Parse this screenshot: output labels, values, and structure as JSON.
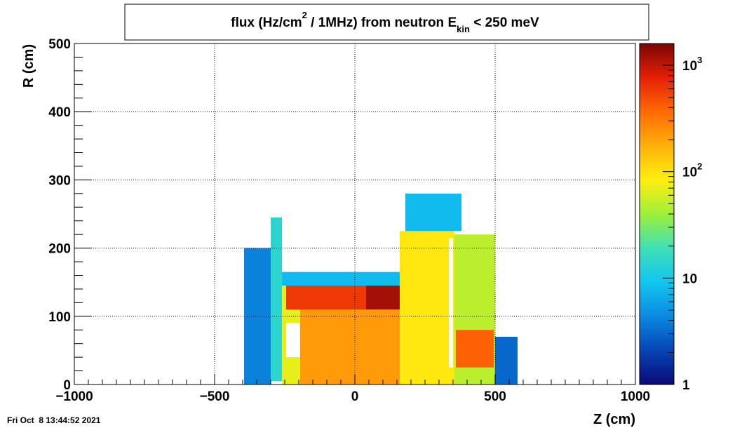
{
  "chart_data": {
    "type": "heatmap",
    "title": {
      "pre": "flux (Hz/cm",
      "sup": "2",
      "mid": " / 1MHz) from   neutron  E",
      "sub": "kin",
      "post": " < 250 meV"
    },
    "xlabel": "Z (cm)",
    "ylabel": "R (cm)",
    "xlim": [
      -1000,
      1000
    ],
    "ylim": [
      0,
      500
    ],
    "x_ticks": [
      {
        "value": -1000,
        "label": "−1000"
      },
      {
        "value": -500,
        "label": "−500"
      },
      {
        "value": 0,
        "label": "0"
      },
      {
        "value": 500,
        "label": "500"
      },
      {
        "value": 1000,
        "label": "1000"
      }
    ],
    "y_ticks": [
      {
        "value": 0,
        "label": "0"
      },
      {
        "value": 100,
        "label": "100"
      },
      {
        "value": 200,
        "label": "200"
      },
      {
        "value": 300,
        "label": "300"
      },
      {
        "value": 400,
        "label": "400"
      },
      {
        "value": 500,
        "label": "500"
      }
    ],
    "grid": true,
    "colorbar": {
      "scale": "log",
      "range": [
        1,
        1600
      ],
      "ticks": [
        {
          "value": 1,
          "base": "1",
          "exp": ""
        },
        {
          "value": 10,
          "base": "10",
          "exp": ""
        },
        {
          "value": 100,
          "base": "10",
          "exp": "2"
        },
        {
          "value": 1000,
          "base": "10",
          "exp": "3"
        }
      ],
      "palette": [
        "#0a0a78",
        "#0545b4",
        "#0a8ae0",
        "#12c6f0",
        "#3fe0b6",
        "#9ef03a",
        "#ffee10",
        "#ffb10a",
        "#ff6a05",
        "#e52006",
        "#7a0505"
      ]
    },
    "regions": [
      {
        "name": "left-wall",
        "z": [
          -300,
          -260
        ],
        "r": [
          5,
          245
        ],
        "flux": 14
      },
      {
        "name": "left-outer-shell",
        "z": [
          -395,
          -300
        ],
        "r": [
          0,
          200
        ],
        "flux": 4
      },
      {
        "name": "top-shelf",
        "z": [
          -260,
          180
        ],
        "r": [
          145,
          165
        ],
        "flux": 8
      },
      {
        "name": "inner-left-column",
        "z": [
          -260,
          -195
        ],
        "r": [
          0,
          145
        ],
        "flux": 70
      },
      {
        "name": "central-body",
        "z": [
          -195,
          160
        ],
        "r": [
          0,
          110
        ],
        "flux": 220
      },
      {
        "name": "hot-band",
        "z": [
          -245,
          160
        ],
        "r": [
          110,
          145
        ],
        "flux": 600
      },
      {
        "name": "hot-core",
        "z": [
          40,
          160
        ],
        "r": [
          110,
          145
        ],
        "flux": 1200
      },
      {
        "name": "right-body",
        "z": [
          160,
          355
        ],
        "r": [
          0,
          225
        ],
        "flux": 90
      },
      {
        "name": "upper-tower",
        "z": [
          180,
          380
        ],
        "r": [
          225,
          280
        ],
        "flux": 8
      },
      {
        "name": "right-shell",
        "z": [
          355,
          500
        ],
        "r": [
          0,
          220
        ],
        "flux": 50
      },
      {
        "name": "right-hot-wedge",
        "z": [
          360,
          495
        ],
        "r": [
          25,
          80
        ],
        "flux": 400
      },
      {
        "name": "right-debris",
        "z": [
          500,
          580
        ],
        "r": [
          0,
          70
        ],
        "flux": 3
      }
    ],
    "voids": [
      {
        "z": [
          -245,
          -195
        ],
        "r": [
          40,
          90
        ]
      },
      {
        "z": [
          335,
          350
        ],
        "r": [
          25,
          215
        ]
      }
    ],
    "footer_date": "Fri Oct  8 13:44:52 2021"
  }
}
